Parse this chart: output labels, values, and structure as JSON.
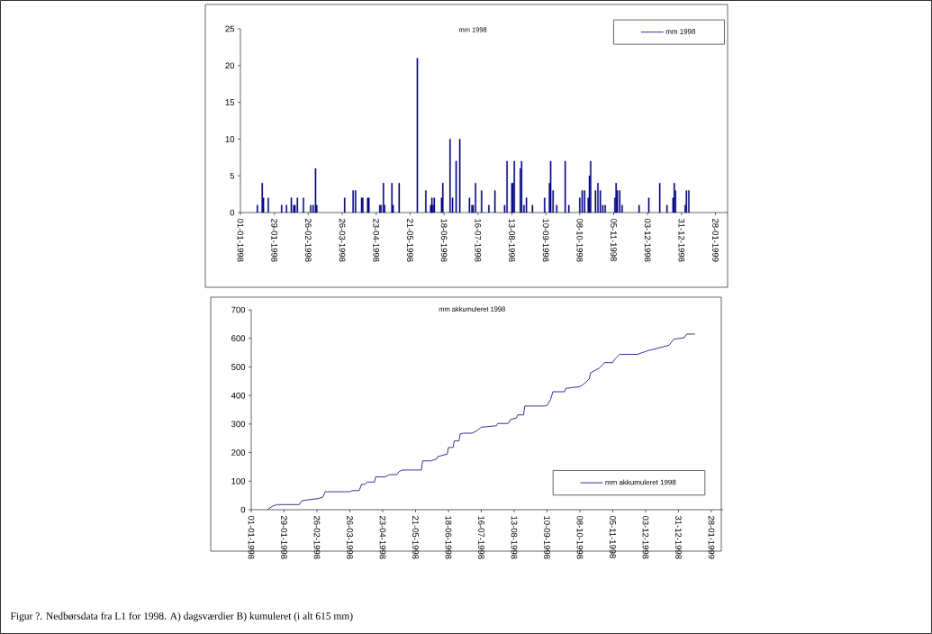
{
  "chart_data": [
    {
      "type": "bar",
      "title": "mm 1998",
      "legend": "top right",
      "x": [
        "1998-01-15",
        "1998-01-19",
        "1998-01-20",
        "1998-01-24",
        "1998-02-04",
        "1998-02-08",
        "1998-02-12",
        "1998-02-14",
        "1998-02-15",
        "1998-02-17",
        "1998-02-22",
        "1998-02-28",
        "1998-03-02",
        "1998-03-04",
        "1998-03-05",
        "1998-03-28",
        "1998-04-04",
        "1998-04-06",
        "1998-04-11",
        "1998-04-12",
        "1998-04-16",
        "1998-04-17",
        "1998-04-26",
        "1998-04-27",
        "1998-04-29",
        "1998-04-30",
        "1998-05-06",
        "1998-05-07",
        "1998-05-12",
        "1998-05-27",
        "1998-06-03",
        "1998-06-07",
        "1998-06-08",
        "1998-06-09",
        "1998-06-10",
        "1998-06-16",
        "1998-06-17",
        "1998-06-23",
        "1998-06-25",
        "1998-06-28",
        "1998-07-01",
        "1998-07-09",
        "1998-07-11",
        "1998-07-12",
        "1998-07-14",
        "1998-07-19",
        "1998-07-25",
        "1998-07-30",
        "1998-08-07",
        "1998-08-09",
        "1998-08-13",
        "1998-08-14",
        "1998-08-15",
        "1998-08-20",
        "1998-08-21",
        "1998-08-23",
        "1998-08-25",
        "1998-08-30",
        "1998-09-09",
        "1998-09-13",
        "1998-09-14",
        "1998-09-16",
        "1998-09-19",
        "1998-09-26",
        "1998-09-29",
        "1998-10-08",
        "1998-10-10",
        "1998-10-12",
        "1998-10-15",
        "1998-10-16",
        "1998-10-17",
        "1998-10-21",
        "1998-10-23",
        "1998-10-25",
        "1998-10-27",
        "1998-10-29",
        "1998-11-06",
        "1998-11-07",
        "1998-11-08",
        "1998-11-10",
        "1998-11-12",
        "1998-11-26",
        "1998-12-04",
        "1998-12-13",
        "1998-12-19",
        "1998-12-24",
        "1998-12-25",
        "1998-12-26",
        "1999-01-03",
        "1999-01-04",
        "1999-01-06"
      ],
      "series": [
        {
          "name": "mm 1998",
          "color": "#000080",
          "values": [
            1,
            4,
            2,
            2,
            1,
            1,
            2,
            1,
            1,
            2,
            2,
            1,
            1,
            6,
            1,
            2,
            3,
            3,
            2,
            2,
            2,
            2,
            1,
            1,
            4,
            1,
            4,
            1,
            4,
            21,
            3,
            1,
            2,
            1,
            2,
            2,
            4,
            10,
            2,
            7,
            10,
            2,
            1,
            1,
            4,
            3,
            1,
            3,
            1,
            7,
            4,
            4,
            7,
            6,
            7,
            1,
            2,
            1,
            2,
            4,
            7,
            3,
            1,
            7,
            1,
            2,
            3,
            3,
            2,
            5,
            7,
            3,
            4,
            3,
            1,
            1,
            2,
            4,
            3,
            3,
            1,
            1,
            2,
            4,
            1,
            2,
            4,
            3,
            1,
            3,
            3
          ]
        }
      ],
      "xlim": [
        "1998-01-01",
        "1999-02-07"
      ],
      "ylim": [
        0,
        25
      ],
      "yticks": [
        0,
        5,
        10,
        15,
        20,
        25
      ],
      "xticks": [
        {
          "value": "1998-01-01",
          "label": "01-01-1998"
        },
        {
          "value": "1998-01-29",
          "label": "29-01-1998"
        },
        {
          "value": "1998-02-26",
          "label": "26-02-1998"
        },
        {
          "value": "1998-03-26",
          "label": "26-03-1998"
        },
        {
          "value": "1998-04-23",
          "label": "23-04-1998"
        },
        {
          "value": "1998-05-21",
          "label": "21-05-1998"
        },
        {
          "value": "1998-06-18",
          "label": "18-06-1998"
        },
        {
          "value": "1998-07-16",
          "label": "16-07-1998"
        },
        {
          "value": "1998-08-13",
          "label": "13-08-1998"
        },
        {
          "value": "1998-09-10",
          "label": "10-09-1998"
        },
        {
          "value": "1998-10-08",
          "label": "08-10-1998"
        },
        {
          "value": "1998-11-05",
          "label": "05-11-1998"
        },
        {
          "value": "1998-12-03",
          "label": "03-12-1998"
        },
        {
          "value": "1998-12-31",
          "label": "31-12-1998"
        },
        {
          "value": "1999-01-28",
          "label": "28-01-1999"
        }
      ]
    },
    {
      "type": "line",
      "title": "mm akkumuleret 1998",
      "legend": "bottom right",
      "x": [
        "1998-01-15",
        "1998-01-19",
        "1998-01-23",
        "1998-02-11",
        "1998-02-13",
        "1998-02-17",
        "1998-02-27",
        "1998-03-03",
        "1998-03-05",
        "1998-03-26",
        "1998-03-28",
        "1998-04-03",
        "1998-04-05",
        "1998-04-08",
        "1998-04-10",
        "1998-04-16",
        "1998-04-17",
        "1998-04-25",
        "1998-04-29",
        "1998-05-05",
        "1998-05-07",
        "1998-05-10",
        "1998-05-26",
        "1998-05-27",
        "1998-06-03",
        "1998-06-08",
        "1998-06-09",
        "1998-06-17",
        "1998-06-18",
        "1998-06-22",
        "1998-06-23",
        "1998-06-27",
        "1998-06-28",
        "1998-07-01",
        "1998-07-08",
        "1998-07-12",
        "1998-07-16",
        "1998-07-29",
        "1998-07-30",
        "1998-08-08",
        "1998-08-10",
        "1998-08-15",
        "1998-08-16",
        "1998-08-21",
        "1998-08-22",
        "1998-09-08",
        "1998-09-10",
        "1998-09-13",
        "1998-09-15",
        "1998-09-25",
        "1998-09-26",
        "1998-10-08",
        "1998-10-11",
        "1998-10-16",
        "1998-10-17",
        "1998-10-25",
        "1998-10-29",
        "1998-11-05",
        "1998-11-07",
        "1998-11-11",
        "1998-11-26",
        "1998-12-05",
        "1998-12-13",
        "1998-12-23",
        "1998-12-27",
        "1999-01-05",
        "1999-01-07",
        "1999-01-14"
      ],
      "series": [
        {
          "name": "mm akkumuleret 1998",
          "color": "#000080",
          "values": [
            1,
            12,
            18,
            18,
            31,
            34,
            39,
            44,
            63,
            63,
            67,
            67,
            89,
            89,
            97,
            97,
            115,
            115,
            123,
            123,
            134,
            139,
            139,
            171,
            171,
            178,
            186,
            195,
            218,
            218,
            241,
            241,
            265,
            268,
            268,
            276,
            289,
            294,
            302,
            302,
            316,
            321,
            332,
            332,
            363,
            363,
            365,
            386,
            413,
            413,
            425,
            431,
            439,
            458,
            479,
            497,
            515,
            515,
            528,
            544,
            544,
            557,
            565,
            576,
            597,
            602,
            615,
            615
          ]
        }
      ],
      "xlim": [
        "1998-01-01",
        "1999-02-07"
      ],
      "ylim": [
        0,
        700
      ],
      "yticks": [
        0,
        100,
        200,
        300,
        400,
        500,
        600,
        700
      ],
      "xticks": [
        {
          "value": "1998-01-01",
          "label": "01-01-1998"
        },
        {
          "value": "1998-01-29",
          "label": "29-01-1998"
        },
        {
          "value": "1998-02-26",
          "label": "26-02-1998"
        },
        {
          "value": "1998-03-26",
          "label": "26-03-1998"
        },
        {
          "value": "1998-04-23",
          "label": "23-04-1998"
        },
        {
          "value": "1998-05-21",
          "label": "21-05-1998"
        },
        {
          "value": "1998-06-18",
          "label": "18-06-1998"
        },
        {
          "value": "1998-07-16",
          "label": "16-07-1998"
        },
        {
          "value": "1998-08-13",
          "label": "13-08-1998"
        },
        {
          "value": "1998-09-10",
          "label": "10-09-1998"
        },
        {
          "value": "1998-10-08",
          "label": "08-10-1998"
        },
        {
          "value": "1998-11-05",
          "label": "05-11-1998"
        },
        {
          "value": "1998-12-03",
          "label": "03-12-1998"
        },
        {
          "value": "1998-12-31",
          "label": "31-12-1998"
        },
        {
          "value": "1999-01-28",
          "label": "28-01-1999"
        }
      ],
      "annotations": [
        "Figur ?. Nedbørsdata fra L1 for 1998. A) dagsværdier B) kumuleret (i alt 615 mm)"
      ]
    }
  ]
}
